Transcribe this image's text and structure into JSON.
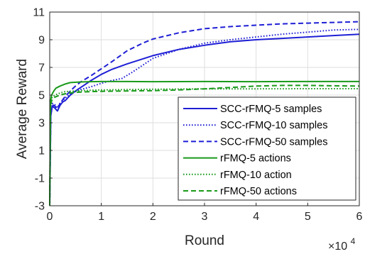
{
  "chart_data": {
    "type": "line",
    "title": "",
    "xlabel": "Round",
    "ylabel": "Average Reward",
    "x_multiplier_label": {
      "base": "×10",
      "exponent": "4"
    },
    "xlim": [
      0,
      60000
    ],
    "ylim": [
      -3,
      11
    ],
    "xticks": [
      0,
      10000,
      20000,
      30000,
      40000,
      50000,
      60000
    ],
    "xtick_labels": [
      "0",
      "1",
      "2",
      "3",
      "4",
      "5",
      "6"
    ],
    "yticks": [
      -3,
      -1,
      1,
      3,
      5,
      7,
      9,
      11
    ],
    "ytick_labels": [
      "-3",
      "-1",
      "1",
      "3",
      "5",
      "7",
      "9",
      "11"
    ],
    "grid": true,
    "legend_position": "lower-right",
    "series": [
      {
        "name": "SCC-rFMQ-5 samples",
        "color": "#1f1fd6",
        "dash": "solid",
        "x": [
          0,
          200,
          500,
          1000,
          1500,
          2000,
          2500,
          3000,
          4000,
          5000,
          6000,
          7000,
          8000,
          10000,
          12000,
          15000,
          20000,
          25000,
          30000,
          35000,
          40000,
          45000,
          50000,
          55000,
          60000
        ],
        "y": [
          -3,
          3.5,
          4.2,
          4.05,
          3.85,
          4.25,
          4.5,
          4.6,
          5.0,
          5.3,
          5.55,
          5.8,
          6.05,
          6.5,
          6.85,
          7.25,
          7.85,
          8.3,
          8.6,
          8.85,
          9.0,
          9.1,
          9.2,
          9.3,
          9.4
        ]
      },
      {
        "name": "SCC-rFMQ-10 samples",
        "color": "#1f1fd6",
        "dash": "dot",
        "x": [
          0,
          200,
          500,
          1000,
          1500,
          2000,
          3000,
          4000,
          5000,
          6000,
          7000,
          8000,
          10000,
          12000,
          14000,
          16000,
          18000,
          20000,
          25000,
          30000,
          35000,
          40000,
          45000,
          50000,
          55000,
          60000
        ],
        "y": [
          -3,
          3.6,
          4.4,
          4.3,
          4.1,
          4.4,
          4.8,
          5.05,
          5.25,
          5.4,
          5.5,
          5.6,
          5.85,
          6.05,
          6.2,
          6.65,
          7.15,
          7.65,
          8.3,
          8.75,
          9.0,
          9.2,
          9.4,
          9.55,
          9.7,
          9.75
        ]
      },
      {
        "name": "SCC-rFMQ-50 samples",
        "color": "#1f1fd6",
        "dash": "dash",
        "x": [
          0,
          200,
          500,
          1000,
          1500,
          2000,
          3000,
          4000,
          5000,
          6000,
          8000,
          10000,
          12000,
          15000,
          18000,
          20000,
          25000,
          30000,
          35000,
          40000,
          45000,
          50000,
          55000,
          60000
        ],
        "y": [
          -3,
          3.5,
          4.3,
          4.2,
          4.0,
          4.4,
          4.9,
          5.3,
          5.65,
          5.95,
          6.4,
          6.9,
          7.4,
          8.2,
          8.75,
          9.05,
          9.5,
          9.8,
          9.95,
          10.05,
          10.15,
          10.2,
          10.25,
          10.3
        ]
      },
      {
        "name": "rFMQ-5 actions",
        "color": "#1a9a1a",
        "dash": "solid",
        "x": [
          0,
          150,
          300,
          500,
          800,
          1200,
          2000,
          3000,
          4000,
          6000,
          8000,
          10000,
          15000,
          20000,
          30000,
          40000,
          50000,
          60000
        ],
        "y": [
          -3,
          4.5,
          4.9,
          5.1,
          5.3,
          5.5,
          5.65,
          5.8,
          5.9,
          5.95,
          5.97,
          5.98,
          5.98,
          5.97,
          5.98,
          5.97,
          5.98,
          5.98
        ]
      },
      {
        "name": "rFMQ-10 action",
        "color": "#1a9a1a",
        "dash": "dot",
        "x": [
          0,
          150,
          300,
          500,
          1000,
          2000,
          3000,
          5000,
          8000,
          10000,
          15000,
          20000,
          30000,
          40000,
          50000,
          60000
        ],
        "y": [
          -3,
          4.4,
          4.7,
          4.85,
          5.0,
          5.15,
          5.25,
          5.3,
          5.35,
          5.37,
          5.4,
          5.42,
          5.45,
          5.45,
          5.46,
          5.46
        ]
      },
      {
        "name": "rFMQ-50 actions",
        "color": "#1a9a1a",
        "dash": "dash",
        "x": [
          0,
          150,
          300,
          500,
          1000,
          2000,
          3000,
          5000,
          8000,
          10000,
          15000,
          20000,
          25000,
          30000,
          35000,
          40000,
          45000,
          50000,
          55000,
          60000
        ],
        "y": [
          -3,
          4.0,
          4.5,
          4.7,
          4.85,
          5.0,
          5.1,
          5.2,
          5.25,
          5.27,
          5.3,
          5.32,
          5.37,
          5.45,
          5.55,
          5.65,
          5.7,
          5.7,
          5.67,
          5.65
        ]
      }
    ]
  }
}
